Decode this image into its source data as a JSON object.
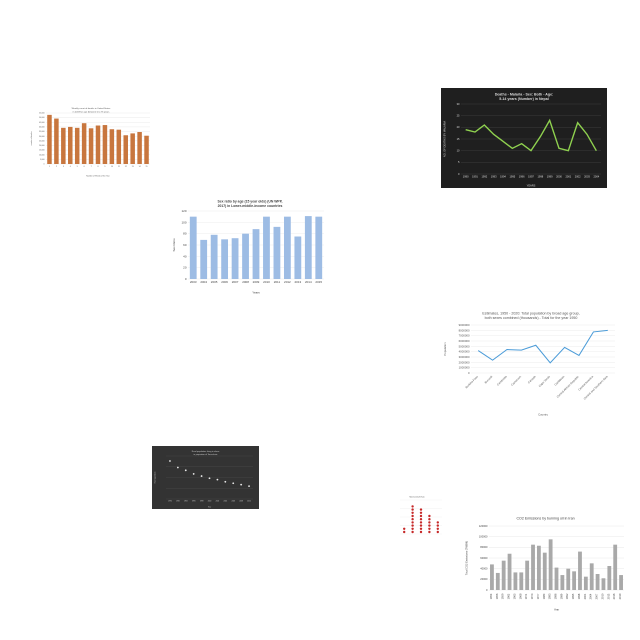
{
  "chart_data": [
    {
      "id": "c1",
      "type": "bar",
      "title": "Weekly count of deaths in United States in 2019 for age between 0 to 75 years",
      "xlabel": "Number of Weeks of the Year",
      "ylabel": "number of deaths",
      "categories": [
        "1",
        "2",
        "3",
        "4",
        "5",
        "6",
        "7",
        "8",
        "9",
        "10",
        "11",
        "12",
        "13",
        "14",
        "15"
      ],
      "values": [
        53000,
        49000,
        39000,
        40000,
        39000,
        44000,
        38500,
        41500,
        42000,
        37500,
        37000,
        31000,
        33000,
        34500,
        30500
      ],
      "ylim": [
        0,
        55000
      ],
      "yticks": [
        "0",
        "5,000",
        "10,000",
        "15,000",
        "20,000",
        "25,000",
        "30,000",
        "35,000",
        "40,000",
        "45,000",
        "50,000",
        "55,000"
      ],
      "color": "#c8763e"
    },
    {
      "id": "c2",
      "type": "line",
      "title": "Deaths - Malaria - Sex: Both - Age: 5-14 years (Number) in Nepal",
      "xlabel": "YEARS",
      "ylabel": "NO. OF DEATHS BY MALARIA",
      "categories": [
        "1990",
        "1991",
        "1992",
        "1993",
        "1994",
        "1995",
        "1996",
        "1997",
        "1998",
        "1999",
        "2000",
        "2001",
        "2002",
        "2003",
        "2004"
      ],
      "values": [
        19,
        18,
        21,
        17,
        14,
        11,
        13,
        10,
        16,
        23,
        11,
        10,
        22,
        17,
        10
      ],
      "ylim": [
        0,
        30
      ],
      "yticks": [
        "0",
        "5",
        "10",
        "15",
        "20",
        "25",
        "30"
      ],
      "color": "#8fd14f"
    },
    {
      "id": "c3",
      "type": "bar",
      "title": "Sex ratio by age (15 year olds) (UN WPP, 2017) in Lower-middle-income countries",
      "xlabel": "Years",
      "ylabel": "Sex Ratio",
      "categories": [
        "2003",
        "2004",
        "2005",
        "2006",
        "2007",
        "2008",
        "2009",
        "2010",
        "2011",
        "2012",
        "2013",
        "2014",
        "2015"
      ],
      "values": [
        110,
        69,
        78,
        70,
        72,
        80,
        88,
        110,
        92,
        110,
        75,
        111,
        110
      ],
      "ylim": [
        0,
        120
      ],
      "yticks": [
        "0",
        "20",
        "40",
        "60",
        "80",
        "100",
        "120"
      ],
      "color": "#9dbce4"
    },
    {
      "id": "c4",
      "type": "line",
      "title": "Estimates, 1950 - 2020: Total population by broad age group, both sexes combined (thousands) - Total for the year 1950",
      "xlabel": "Country",
      "ylabel": "Population",
      "categories": [
        "Burkina Faso",
        "Burundi",
        "Cambodia",
        "Cameroon",
        "Canada",
        "Cape Verde",
        "Caribbean",
        "Central African Republic",
        "Central America",
        "Central and Southern Asia"
      ],
      "values": [
        4200000,
        2400000,
        4400000,
        4300000,
        5200000,
        1900000,
        4800000,
        3300000,
        7700000,
        8000000
      ],
      "ylim": [
        0,
        9000000
      ],
      "yticks": [
        "0",
        "1000000",
        "2000000",
        "3000000",
        "4000000",
        "5000000",
        "6000000",
        "7000000",
        "8000000",
        "9000000"
      ],
      "color": "#4a9bd8"
    },
    {
      "id": "c5",
      "type": "scatter",
      "title": "Rural population living in slums in proportion of Timor-leste",
      "xlabel": "Year",
      "ylabel": "Rural population",
      "x": [
        "1990",
        "1992",
        "1994",
        "1996",
        "1998",
        "2000",
        "2002",
        "2004",
        "2006",
        "2008",
        "2010"
      ],
      "values": [
        93,
        84,
        80,
        75,
        72,
        69,
        67,
        64,
        62,
        60,
        58
      ],
      "ylim": [
        40,
        100
      ],
      "color": "#e8e8e8"
    },
    {
      "id": "c6",
      "type": "scatter",
      "title": "Maternal Death Ratio",
      "ylabel": "",
      "categories": [
        "",
        "",
        "",
        "",
        ""
      ],
      "values": [
        2,
        9,
        8,
        6,
        4
      ],
      "ylim": [
        0,
        10
      ],
      "color": "#c62828"
    },
    {
      "id": "c7",
      "type": "bar",
      "title": "CO2 Emissions by burning oil in Iran",
      "xlabel": "Year",
      "ylabel": "Total CO2 Emissions (TMBM)",
      "categories": [
        "1953",
        "1956",
        "1959",
        "1962",
        "1965",
        "1968",
        "1971",
        "1974",
        "1977",
        "1980",
        "1983",
        "1986",
        "1989",
        "1992",
        "1995",
        "1998",
        "2001",
        "2004",
        "2007",
        "2010",
        "2013",
        "2016",
        "2019"
      ],
      "values": [
        48000,
        32000,
        55000,
        68000,
        33000,
        33000,
        55000,
        85000,
        83000,
        70000,
        95000,
        42000,
        28000,
        40000,
        35000,
        72000,
        25000,
        50000,
        30000,
        22000,
        45000,
        85000,
        28000
      ],
      "ylim": [
        0,
        120000
      ],
      "yticks": [
        "0",
        "20000",
        "40000",
        "60000",
        "80000",
        "100000",
        "120000"
      ],
      "color": "#a9a9a9"
    }
  ]
}
